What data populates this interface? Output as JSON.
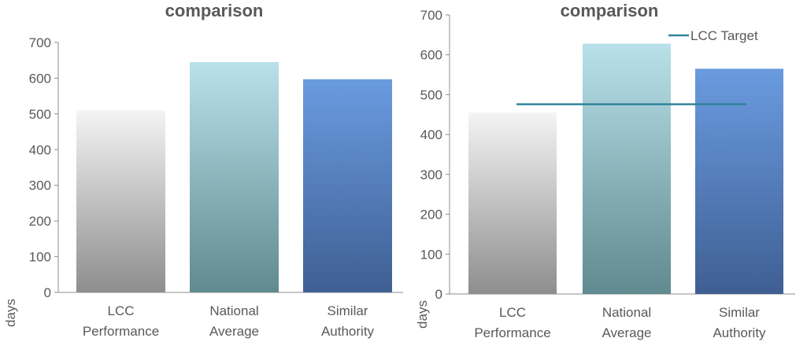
{
  "chart_data": [
    {
      "type": "bar",
      "title": "comparison",
      "ylabel": "days",
      "categories": [
        "LCC\nPerformance",
        "National\nAverage",
        "Similar\nAuthority"
      ],
      "values": [
        510,
        645,
        597
      ],
      "ylim": [
        0,
        700
      ],
      "yticks": [
        0,
        100,
        200,
        300,
        400,
        500,
        600,
        700
      ],
      "grid": false,
      "bar_colors": [
        "#9a9a9a",
        "#6f9aa0",
        "#4d6fa8"
      ]
    },
    {
      "type": "bar",
      "title": "comparison",
      "ylabel": "days",
      "categories": [
        "LCC\nPerformance",
        "National\nAverage",
        "Similar\nAuthority"
      ],
      "values": [
        455,
        628,
        565
      ],
      "ylim": [
        0,
        700
      ],
      "yticks": [
        0,
        100,
        200,
        300,
        400,
        500,
        600,
        700
      ],
      "grid": false,
      "bar_colors": [
        "#9a9a9a",
        "#6f9aa0",
        "#4d6fa8"
      ],
      "target_line": {
        "name": "LCC Target",
        "value": 476,
        "color": "#31849b"
      },
      "legend": {
        "position": "top-right",
        "entries": [
          "LCC Target"
        ]
      }
    }
  ]
}
